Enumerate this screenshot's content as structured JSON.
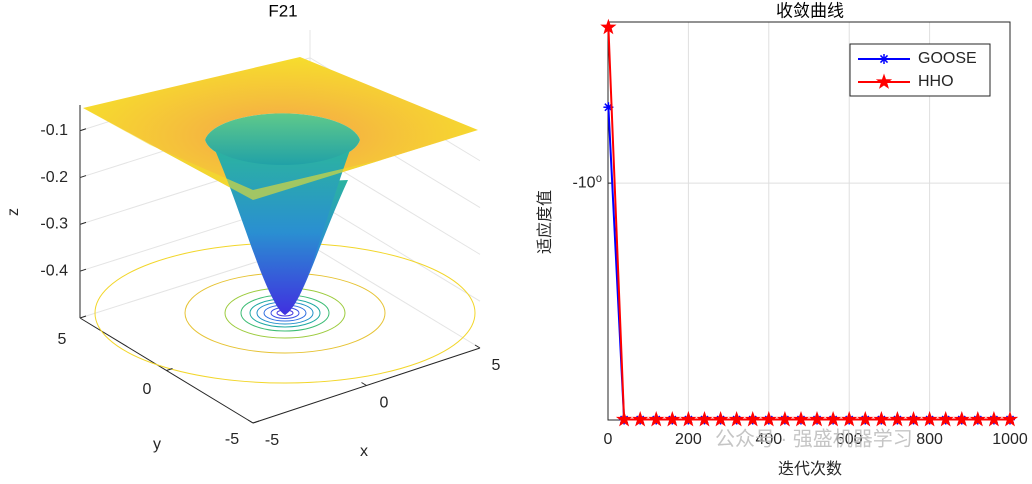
{
  "chart_data": [
    {
      "type": "surface3d",
      "title": "F21",
      "xlabel": "x",
      "ylabel": "y",
      "zlabel": "z",
      "xlim": [
        -5,
        5
      ],
      "xticks": [
        -5,
        0,
        5
      ],
      "ylim": [
        -5,
        5
      ],
      "yticks": [
        -5,
        0,
        5
      ],
      "zlim": [
        -0.5,
        -0.045
      ],
      "zticks": [
        -0.4,
        -0.3,
        -0.2,
        -0.1
      ],
      "grid": true
    },
    {
      "type": "line",
      "title": "收敛曲线",
      "xlabel": "迭代次数",
      "ylabel": "适应度值",
      "xlim": [
        0,
        1000
      ],
      "xticks": [
        0,
        200,
        400,
        600,
        800,
        1000
      ],
      "ylim": [
        -10.2,
        -0.206
      ],
      "yticks": [
        {
          "value": -1,
          "label": "-10⁰"
        }
      ],
      "yscale": "log",
      "grid": true,
      "legend": "northeast",
      "x": [
        1,
        40,
        80,
        120,
        160,
        200,
        240,
        280,
        320,
        360,
        400,
        440,
        480,
        520,
        560,
        600,
        640,
        680,
        720,
        760,
        800,
        840,
        880,
        920,
        960,
        1000
      ],
      "series": [
        {
          "name": "GOOSE",
          "color": "#0000ff",
          "marker": "asterisk",
          "values": [
            -0.475,
            -10.1532,
            -10.1532,
            -10.1532,
            -10.1532,
            -10.1532,
            -10.1532,
            -10.1532,
            -10.1532,
            -10.1532,
            -10.1532,
            -10.1532,
            -10.1532,
            -10.1532,
            -10.1532,
            -10.1532,
            -10.1532,
            -10.1532,
            -10.1532,
            -10.1532,
            -10.1532,
            -10.1532,
            -10.1532,
            -10.1532,
            -10.1532,
            -10.1532
          ]
        },
        {
          "name": "HHO",
          "color": "#ff0000",
          "marker": "pentagram",
          "values": [
            -0.217,
            -10.1532,
            -10.1532,
            -10.1532,
            -10.1532,
            -10.1532,
            -10.1532,
            -10.1532,
            -10.1532,
            -10.1532,
            -10.1532,
            -10.1532,
            -10.1532,
            -10.1532,
            -10.1532,
            -10.1532,
            -10.1532,
            -10.1532,
            -10.1532,
            -10.1532,
            -10.1532,
            -10.1532,
            -10.1532,
            -10.1532,
            -10.1532,
            -10.1532
          ]
        }
      ],
      "watermark": "公众号 · 强盛机器学习"
    }
  ]
}
